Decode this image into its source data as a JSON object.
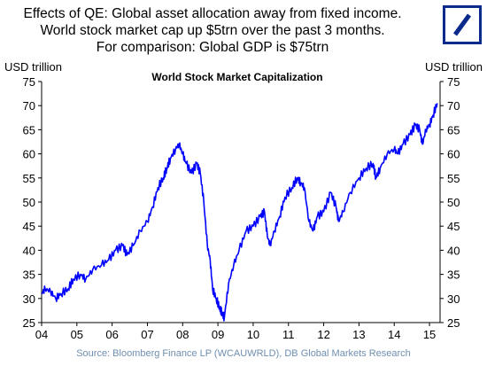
{
  "headline": {
    "line1": "Effects of QE: Global asset allocation away from fixed income.",
    "line2": "World stock market cap up $5trn over the past 3 months.",
    "line3": "For comparison: Global GDP is $75trn"
  },
  "logo": {
    "icon": "deutsche-bank-slash-logo",
    "color": "#0a2a8c"
  },
  "source": "Source: Bloomberg Finance LP (WCAUWRLD), DB Global Markets Research",
  "chart_data": {
    "type": "line",
    "title": "World Stock Market Capitalization",
    "ylabel_left": "USD trillion",
    "ylabel_right": "USD trillion",
    "ylim": [
      25,
      75
    ],
    "yticks": [
      25,
      30,
      35,
      40,
      45,
      50,
      55,
      60,
      65,
      70,
      75
    ],
    "xlim": [
      2004,
      2015.3
    ],
    "xticks": [
      {
        "value": 2004,
        "label": "04"
      },
      {
        "value": 2005,
        "label": "05"
      },
      {
        "value": 2006,
        "label": "06"
      },
      {
        "value": 2007,
        "label": "07"
      },
      {
        "value": 2008,
        "label": "08"
      },
      {
        "value": 2009,
        "label": "09"
      },
      {
        "value": 2010,
        "label": "10"
      },
      {
        "value": 2011,
        "label": "11"
      },
      {
        "value": 2012,
        "label": "12"
      },
      {
        "value": 2013,
        "label": "13"
      },
      {
        "value": 2014,
        "label": "14"
      },
      {
        "value": 2015,
        "label": "15"
      }
    ],
    "grid": false,
    "series": [
      {
        "color": "#0000ff",
        "points": [
          [
            2004.0,
            31
          ],
          [
            2004.1,
            32
          ],
          [
            2004.25,
            31.5
          ],
          [
            2004.4,
            30
          ],
          [
            2004.55,
            31
          ],
          [
            2004.75,
            32
          ],
          [
            2004.9,
            34
          ],
          [
            2005.1,
            35
          ],
          [
            2005.25,
            34
          ],
          [
            2005.45,
            36
          ],
          [
            2005.7,
            37
          ],
          [
            2005.9,
            38
          ],
          [
            2006.1,
            40
          ],
          [
            2006.3,
            41
          ],
          [
            2006.42,
            39
          ],
          [
            2006.6,
            41
          ],
          [
            2006.8,
            44
          ],
          [
            2007.0,
            46
          ],
          [
            2007.15,
            49
          ],
          [
            2007.3,
            53
          ],
          [
            2007.45,
            55
          ],
          [
            2007.55,
            57
          ],
          [
            2007.65,
            59
          ],
          [
            2007.8,
            61
          ],
          [
            2007.9,
            62
          ],
          [
            2008.0,
            60
          ],
          [
            2008.1,
            58
          ],
          [
            2008.25,
            56
          ],
          [
            2008.4,
            58
          ],
          [
            2008.5,
            56
          ],
          [
            2008.6,
            50
          ],
          [
            2008.7,
            41
          ],
          [
            2008.78,
            38
          ],
          [
            2008.85,
            32
          ],
          [
            2008.95,
            30
          ],
          [
            2009.05,
            28
          ],
          [
            2009.12,
            27
          ],
          [
            2009.18,
            26
          ],
          [
            2009.3,
            33
          ],
          [
            2009.45,
            37
          ],
          [
            2009.6,
            40
          ],
          [
            2009.8,
            44
          ],
          [
            2010.0,
            45
          ],
          [
            2010.2,
            47
          ],
          [
            2010.32,
            48
          ],
          [
            2010.4,
            43
          ],
          [
            2010.48,
            41
          ],
          [
            2010.6,
            44
          ],
          [
            2010.75,
            47
          ],
          [
            2010.9,
            51
          ],
          [
            2011.1,
            53
          ],
          [
            2011.25,
            55
          ],
          [
            2011.35,
            54
          ],
          [
            2011.45,
            53
          ],
          [
            2011.58,
            46
          ],
          [
            2011.7,
            44
          ],
          [
            2011.82,
            47
          ],
          [
            2012.0,
            48
          ],
          [
            2012.2,
            52
          ],
          [
            2012.35,
            49
          ],
          [
            2012.42,
            46
          ],
          [
            2012.55,
            48
          ],
          [
            2012.75,
            52
          ],
          [
            2013.0,
            55
          ],
          [
            2013.2,
            57
          ],
          [
            2013.4,
            58
          ],
          [
            2013.48,
            55
          ],
          [
            2013.6,
            57
          ],
          [
            2013.8,
            60
          ],
          [
            2014.0,
            61
          ],
          [
            2014.1,
            60
          ],
          [
            2014.25,
            62
          ],
          [
            2014.45,
            64
          ],
          [
            2014.6,
            66
          ],
          [
            2014.72,
            65
          ],
          [
            2014.8,
            62
          ],
          [
            2014.9,
            65
          ],
          [
            2015.0,
            66
          ],
          [
            2015.1,
            68
          ],
          [
            2015.22,
            70.5
          ]
        ]
      }
    ]
  }
}
